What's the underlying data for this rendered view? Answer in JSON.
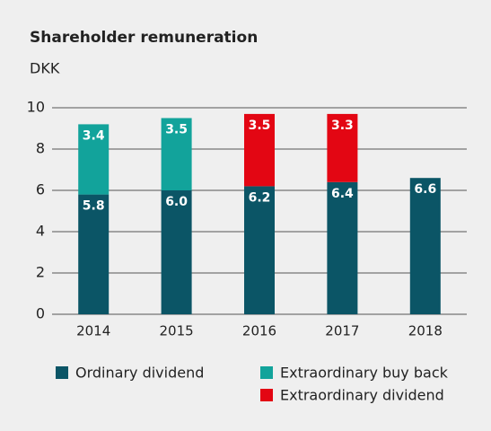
{
  "chart_data": {
    "type": "bar",
    "stacked": true,
    "title": "Shareholder remuneration",
    "y_label": "DKK",
    "categories": [
      "2014",
      "2015",
      "2016",
      "2017",
      "2018"
    ],
    "series": [
      {
        "name": "Ordinary dividend",
        "color": "#0b5566",
        "values": [
          5.8,
          6.0,
          6.2,
          6.4,
          6.6
        ],
        "value_labels": [
          "5.8",
          "6.0",
          "6.2",
          "6.4",
          "6.6"
        ]
      },
      {
        "name": "Extraordinary buy back",
        "color": "#12a39b",
        "values": [
          3.4,
          3.5,
          null,
          null,
          null
        ]
      },
      {
        "name": "Extraordinary dividend",
        "color": "#e30613",
        "values": [
          null,
          null,
          3.5,
          3.3,
          null
        ]
      }
    ],
    "ylim": [
      0,
      10
    ],
    "yticks": [
      0,
      2,
      4,
      6,
      8,
      10
    ],
    "grid": true
  }
}
